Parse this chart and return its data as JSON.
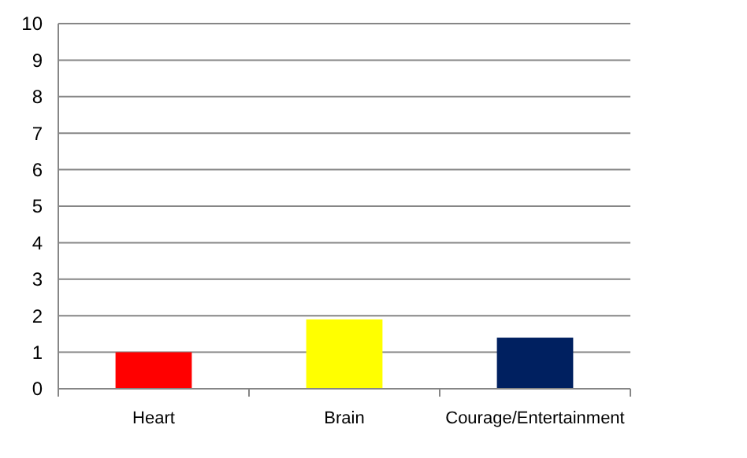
{
  "chart_data": {
    "type": "bar",
    "categories": [
      "Heart",
      "Brain",
      "Courage/Entertainment"
    ],
    "values": [
      1,
      1.9,
      1.4
    ],
    "colors": [
      "#ff0000",
      "#ffff00",
      "#002060"
    ],
    "ylim": [
      0,
      10
    ],
    "yticks": [
      0,
      1,
      2,
      3,
      4,
      5,
      6,
      7,
      8,
      9,
      10
    ],
    "grid": "y"
  }
}
